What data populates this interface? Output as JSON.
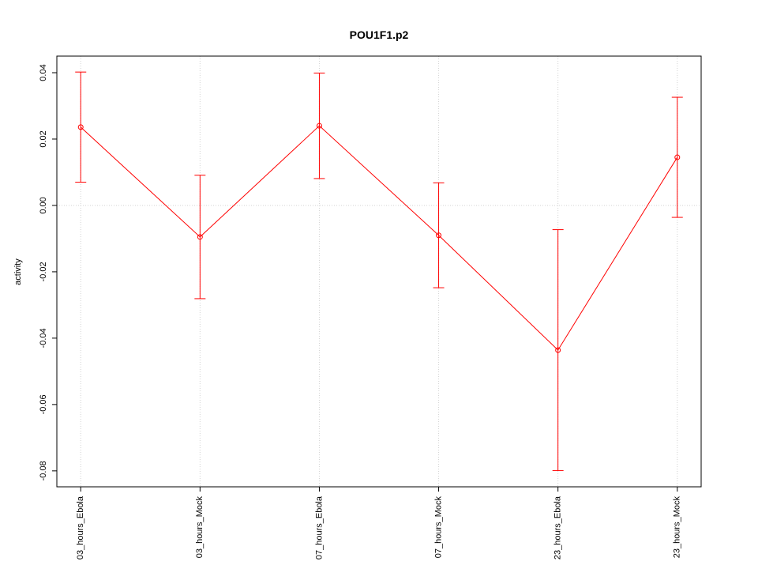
{
  "chart_data": {
    "type": "line",
    "title": "POU1F1.p2",
    "y_label": "activity",
    "categories": [
      "03_hours_Ebola",
      "03_hours_Mock",
      "07_hours_Ebola",
      "07_hours_Mock",
      "23_hours_Ebola",
      "23_hours_Mock"
    ],
    "series": [
      {
        "name": "activity",
        "color": "#ff0000",
        "values": [
          0.0236,
          -0.0095,
          0.024,
          -0.009,
          -0.0436,
          0.0145
        ],
        "errors": [
          0.0166,
          0.0186,
          0.0159,
          0.0158,
          0.0363,
          0.0181
        ]
      }
    ],
    "ylim": [
      -0.0848,
      0.045
    ],
    "yticks": [
      -0.08,
      -0.06,
      -0.04,
      -0.02,
      {
        "value": 0,
        "label": "0.00"
      },
      0.02,
      0.04
    ],
    "grid": true
  }
}
